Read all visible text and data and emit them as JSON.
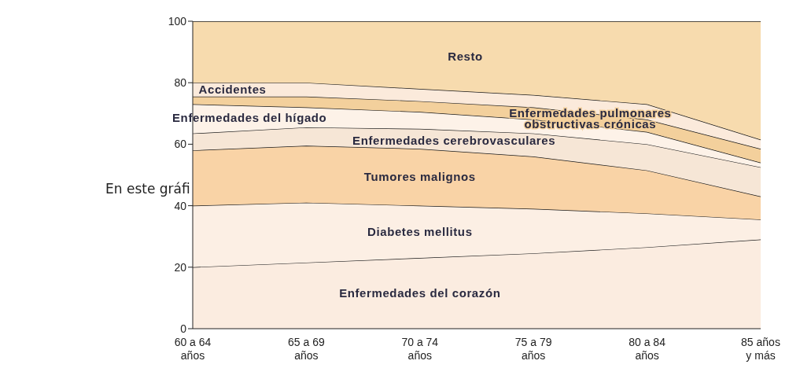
{
  "chart_data": {
    "type": "area",
    "stacked": true,
    "categories": [
      "60 a 64 años",
      "65 a 69 años",
      "70 a 74 años",
      "75 a 79 años",
      "80 a 84 años",
      "85 años y más"
    ],
    "series": [
      {
        "name": "Enfermedades del corazón",
        "color": "#fbece0",
        "values": [
          20,
          21.5,
          23,
          24.5,
          26.5,
          29
        ]
      },
      {
        "name": "Diabetes mellitus",
        "color": "#fcefe4",
        "values": [
          20,
          19.5,
          17,
          14.5,
          11,
          6.5
        ]
      },
      {
        "name": "Tumores malignos",
        "color": "#f9d3a6",
        "values": [
          18,
          18.5,
          18.5,
          17,
          14,
          7.5
        ]
      },
      {
        "name": "Enfermedades cerebrovasculares",
        "color": "#f6e6d6",
        "values": [
          5.5,
          6,
          6.5,
          7.5,
          8.5,
          9.5
        ]
      },
      {
        "name": "Enfermedades del hígado",
        "color": "#fdf2e8",
        "values": [
          9.5,
          6.5,
          5.5,
          4.5,
          4,
          1.5
        ]
      },
      {
        "name": "Enfermedades pulmonares obstructivas crónicas",
        "color": "#f3d09c",
        "values": [
          2.5,
          3.5,
          3.5,
          4,
          4,
          4.5
        ]
      },
      {
        "name": "Accidentes",
        "color": "#fbeadb",
        "values": [
          4.5,
          4.5,
          4,
          4,
          5,
          3
        ]
      },
      {
        "name": "Resto",
        "color": "#f7dbae",
        "values": [
          20,
          20,
          22,
          24,
          27,
          38.5
        ]
      }
    ],
    "ylim": [
      0,
      100
    ],
    "yticks": [
      0,
      20,
      40,
      60,
      80,
      100
    ],
    "annotations": [
      "En este gráfi"
    ]
  }
}
